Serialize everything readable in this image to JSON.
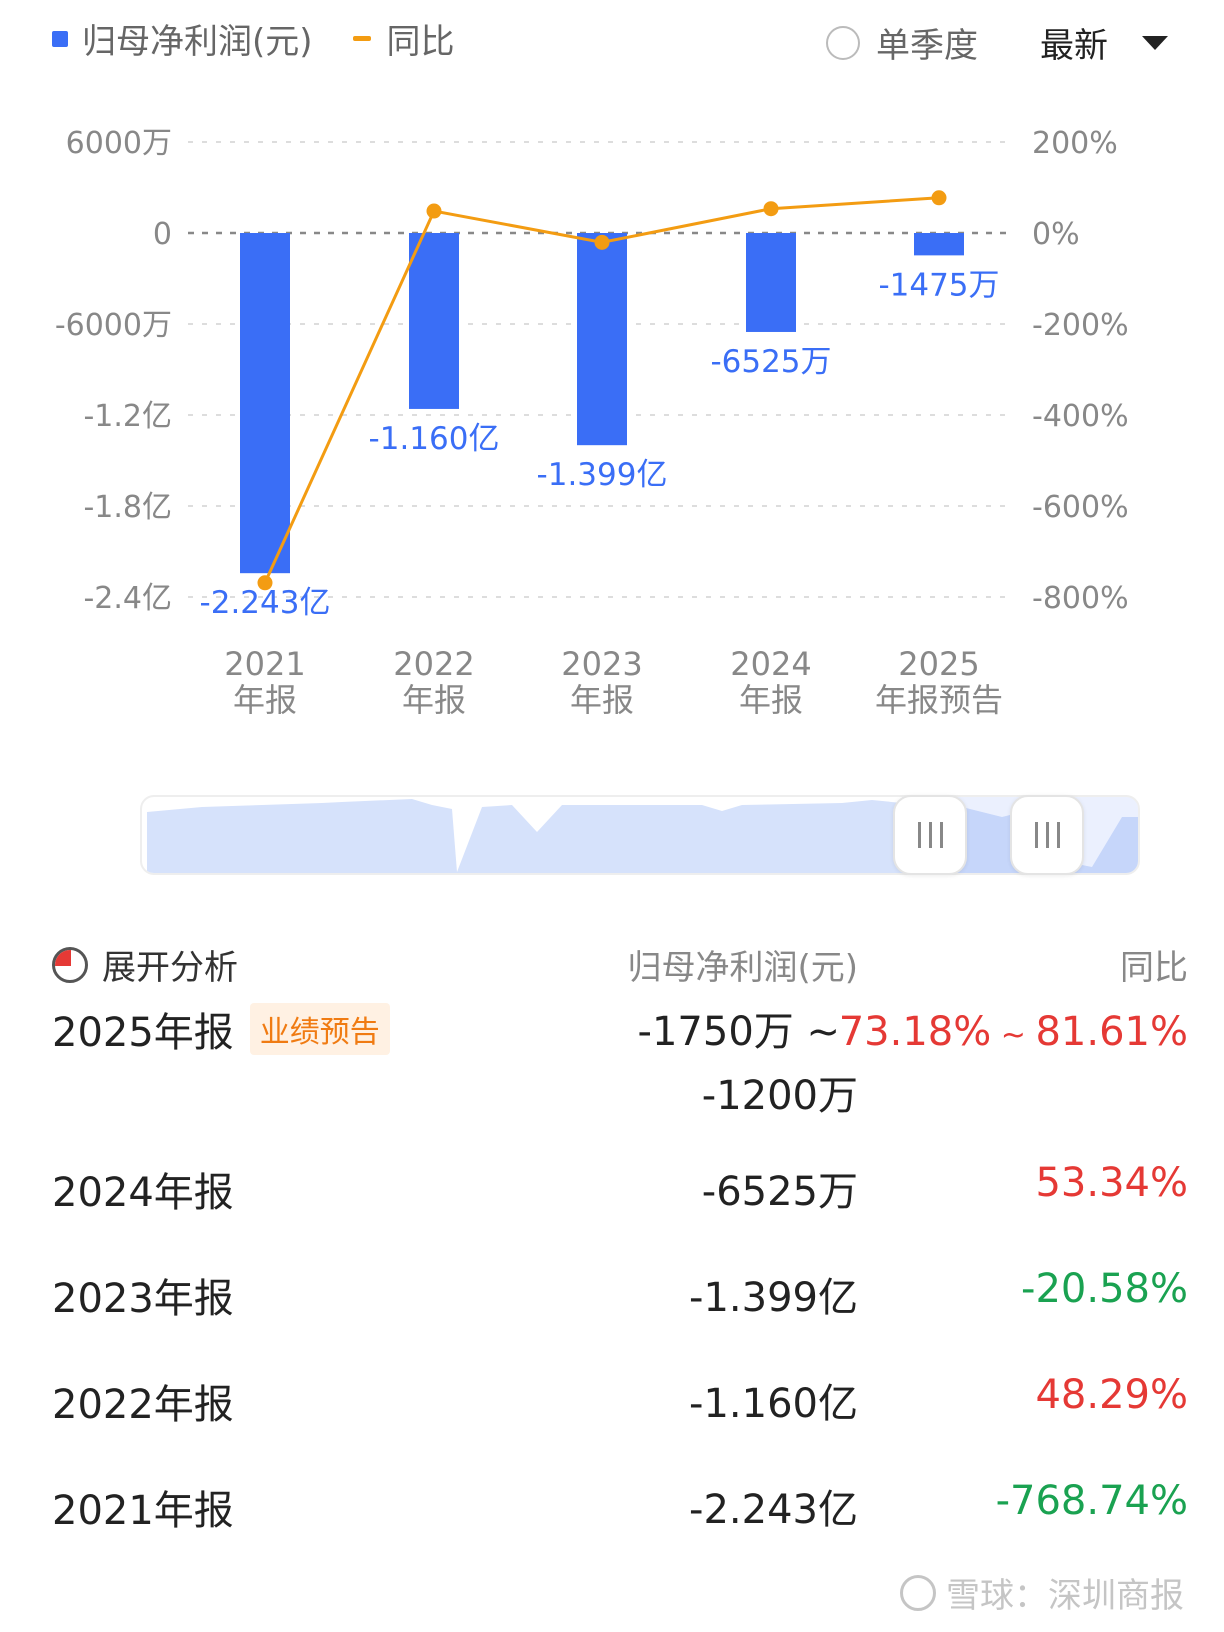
{
  "legend": {
    "bar_label": "归母净利润(元)",
    "line_label": "同比"
  },
  "toggle": {
    "label": "单季度"
  },
  "sort": {
    "label": "最新"
  },
  "colors": {
    "bar": "#3a6ef6",
    "line": "#f39c12",
    "up": "#e53935",
    "down": "#1aa251"
  },
  "chart_data": {
    "type": "bar",
    "categories": [
      "2021\n年报",
      "2022\n年报",
      "2023\n年报",
      "2024\n年报",
      "2025\n年报预告"
    ],
    "series": [
      {
        "name": "归母净利润(元)",
        "type": "bar",
        "axis": "left",
        "values": [
          -224300000,
          -116000000,
          -139900000,
          -65250000,
          -14750000
        ],
        "labels": [
          "-2.243亿",
          "-1.160亿",
          "-1.399亿",
          "-6525万",
          "-1475万"
        ]
      },
      {
        "name": "同比",
        "type": "line",
        "axis": "right",
        "values": [
          -768.74,
          48.29,
          -20.58,
          53.34,
          77.4
        ]
      }
    ],
    "y_left": {
      "ticks": [
        "6000万",
        "0",
        "-6000万",
        "-1.2亿",
        "-1.8亿",
        "-2.4亿"
      ],
      "tick_values": [
        60000000,
        0,
        -60000000,
        -120000000,
        -180000000,
        -240000000
      ],
      "ylim": [
        -240000000,
        60000000
      ]
    },
    "y_right": {
      "ticks": [
        "200%",
        "0%",
        "-200%",
        "-400%",
        "-600%",
        "-800%"
      ],
      "tick_values": [
        200,
        0,
        -200,
        -400,
        -600,
        -800
      ],
      "ylim": [
        -800,
        200
      ]
    },
    "grid": true
  },
  "table": {
    "expand_label": "展开分析",
    "col_value": "归母净利润(元)",
    "col_yoy": "同比",
    "rows": [
      {
        "period": "2025年报",
        "tag": "业绩预告",
        "value_line1": "-1750万 ~",
        "value_line2": "-1200万",
        "yoy_low": "73.18%",
        "yoy_sep": " ~ ",
        "yoy_high": "81.61%"
      },
      {
        "period": "2024年报",
        "value": "-6525万",
        "yoy": "53.34%"
      },
      {
        "period": "2023年报",
        "value": "-1.399亿",
        "yoy": "-20.58%"
      },
      {
        "period": "2022年报",
        "value": "-1.160亿",
        "yoy": "48.29%"
      },
      {
        "period": "2021年报",
        "value": "-2.243亿",
        "yoy": "-768.74%"
      }
    ]
  },
  "watermark": {
    "text": "雪球：深圳商报"
  }
}
